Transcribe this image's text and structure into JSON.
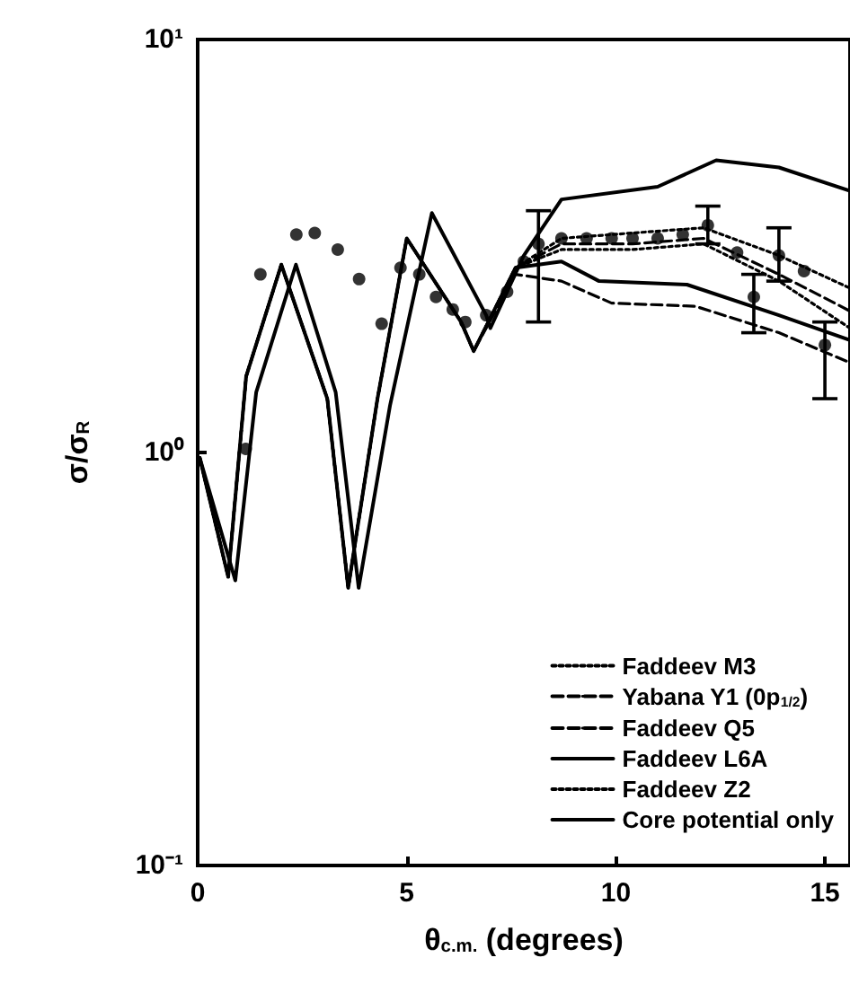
{
  "chart_data": {
    "type": "line",
    "xlabel": "θ$_{c.m.}$ (degrees)",
    "ylabel": "σ/σ$_{R}$",
    "xlim": [
      0,
      15.6
    ],
    "xticks": [
      0,
      5,
      10,
      15
    ],
    "ylim": [
      0.1,
      10
    ],
    "yticks": [
      {
        "value": 0.1,
        "label": "10⁻¹"
      },
      {
        "value": 1,
        "label": "10⁰"
      },
      {
        "value": 10,
        "label": "10¹"
      }
    ],
    "log": "y",
    "grid": false,
    "legend": "bottom right",
    "marker": "none",
    "series": [
      {
        "name": "Faddeev M3",
        "color": "#000000",
        "line_style": "dotted",
        "x": [
          0.05,
          0.73,
          1.16,
          2.0,
          3.1,
          3.6,
          4.3,
          5.0,
          6.3,
          6.6,
          7.6,
          8.7,
          10.4,
          12.1,
          13.9,
          15.6
        ],
        "values": [
          0.97,
          0.5,
          1.53,
          2.85,
          1.35,
          0.47,
          1.35,
          3.3,
          2.07,
          1.76,
          2.8,
          3.3,
          3.4,
          3.5,
          3.0,
          2.5
        ]
      },
      {
        "name": "Yabana Y1 (0p$_{1/2}$)",
        "color": "#000000",
        "line_style": "dashed",
        "x": [
          0.05,
          0.73,
          1.16,
          2.0,
          3.1,
          3.6,
          4.3,
          5.0,
          6.3,
          6.6,
          7.6,
          8.7,
          10.4,
          12.1,
          13.9,
          15.6
        ],
        "values": [
          0.97,
          0.5,
          1.53,
          2.85,
          1.35,
          0.47,
          1.35,
          3.3,
          2.07,
          1.76,
          2.8,
          3.2,
          3.2,
          3.3,
          2.7,
          2.2
        ]
      },
      {
        "name": "Faddeev Q5",
        "color": "#000000",
        "line_style": "dashed",
        "x": [
          0.05,
          0.73,
          1.16,
          2.0,
          3.1,
          3.6,
          4.3,
          5.0,
          6.3,
          6.6,
          7.6,
          8.7,
          9.9,
          11.9,
          13.9,
          15.6
        ],
        "values": [
          0.97,
          0.5,
          1.53,
          2.85,
          1.35,
          0.47,
          1.35,
          3.3,
          2.07,
          1.76,
          2.7,
          2.6,
          2.3,
          2.26,
          1.95,
          1.65
        ]
      },
      {
        "name": "Faddeev L6A",
        "color": "#000000",
        "line_style": "solid",
        "x": [
          0.05,
          0.73,
          1.16,
          2.0,
          3.1,
          3.6,
          4.3,
          5.0,
          6.3,
          6.6,
          7.6,
          8.7,
          9.6,
          11.7,
          13.9,
          15.6
        ],
        "values": [
          0.97,
          0.5,
          1.53,
          2.85,
          1.35,
          0.47,
          1.35,
          3.3,
          2.07,
          1.76,
          2.8,
          2.9,
          2.6,
          2.55,
          2.15,
          1.87
        ]
      },
      {
        "name": "Faddeev Z2",
        "color": "#000000",
        "line_style": "dotted",
        "x": [
          0.05,
          0.73,
          1.16,
          2.0,
          3.1,
          3.6,
          4.3,
          5.0,
          6.3,
          6.6,
          7.6,
          8.7,
          10.4,
          12.1,
          13.9,
          15.6
        ],
        "values": [
          0.97,
          0.5,
          1.53,
          2.85,
          1.35,
          0.47,
          1.35,
          3.3,
          2.07,
          1.76,
          2.8,
          3.1,
          3.1,
          3.2,
          2.6,
          2.0
        ]
      },
      {
        "name": "Core potential only",
        "color": "#000000",
        "line_style": "solid",
        "x": [
          0.05,
          0.9,
          1.4,
          2.35,
          3.3,
          3.85,
          4.6,
          5.6,
          6.9,
          7.0,
          7.8,
          8.7,
          11.0,
          12.4,
          13.9,
          15.6
        ],
        "values": [
          0.97,
          0.49,
          1.4,
          2.85,
          1.4,
          0.47,
          1.3,
          3.8,
          2.15,
          2.0,
          3.0,
          4.1,
          4.4,
          5.1,
          4.9,
          4.3
        ]
      },
      {
        "type": "scatter",
        "color": "#000000",
        "marker": "circle",
        "x": [
          1.15,
          1.5,
          2.36,
          2.8,
          3.35,
          3.86,
          4.4,
          4.85,
          5.3,
          5.7,
          6.1,
          6.4,
          6.9,
          7.4,
          7.8,
          8.15,
          8.7,
          9.3,
          9.9,
          10.4,
          11.0,
          11.6,
          12.2,
          12.9,
          13.3,
          13.9,
          14.5,
          15.0
        ],
        "values": [
          1.02,
          2.7,
          3.37,
          3.4,
          3.1,
          2.63,
          2.05,
          2.8,
          2.7,
          2.38,
          2.22,
          2.07,
          2.15,
          2.45,
          2.9,
          3.2,
          3.3,
          3.3,
          3.3,
          3.3,
          3.3,
          3.37,
          3.55,
          3.05,
          2.38,
          3.0,
          2.75,
          1.82
        ],
        "errors": [
          null,
          null,
          null,
          null,
          null,
          null,
          null,
          null,
          null,
          null,
          null,
          null,
          null,
          null,
          null,
          [
            2.07,
            3.85
          ],
          null,
          null,
          null,
          null,
          null,
          null,
          [
            3.2,
            3.95
          ],
          null,
          [
            1.95,
            2.7
          ],
          [
            2.6,
            3.5
          ],
          null,
          [
            1.35,
            2.07
          ]
        ]
      }
    ]
  }
}
